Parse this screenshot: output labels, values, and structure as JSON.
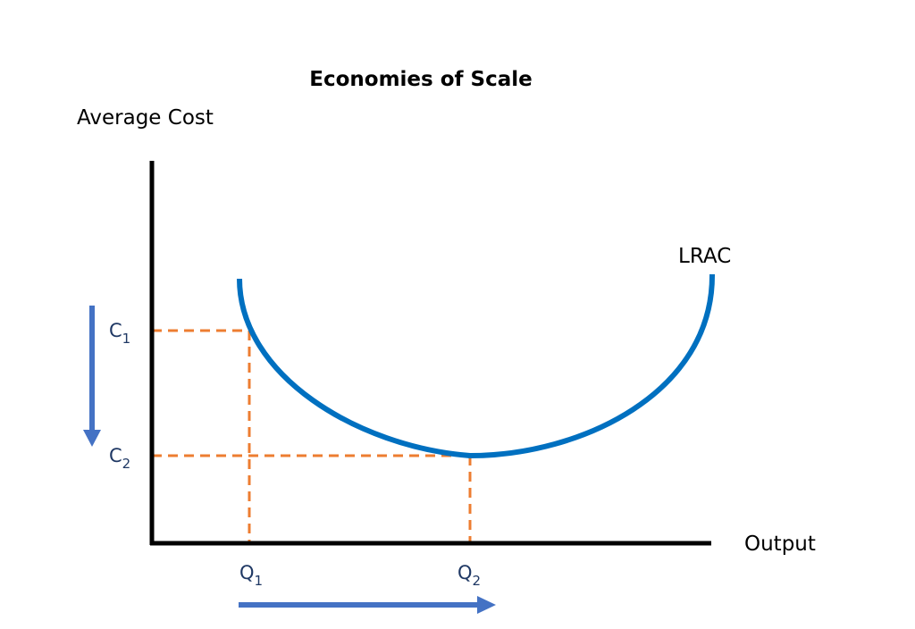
{
  "title": "Economies of Scale",
  "y_axis_label": "Average Cost",
  "x_axis_label": "Output",
  "curve_label": "LRAC",
  "y_ticks": [
    {
      "main": "C",
      "sub": "1"
    },
    {
      "main": "C",
      "sub": "2"
    }
  ],
  "x_ticks": [
    {
      "main": "Q",
      "sub": "1"
    },
    {
      "main": "Q",
      "sub": "2"
    }
  ],
  "colors": {
    "axis": "#000000",
    "curve": "#0070c0",
    "guide_lines": "#ed7d31",
    "arrows": "#4472c4",
    "text": "#000000",
    "tick_text": "#1f3864"
  }
}
